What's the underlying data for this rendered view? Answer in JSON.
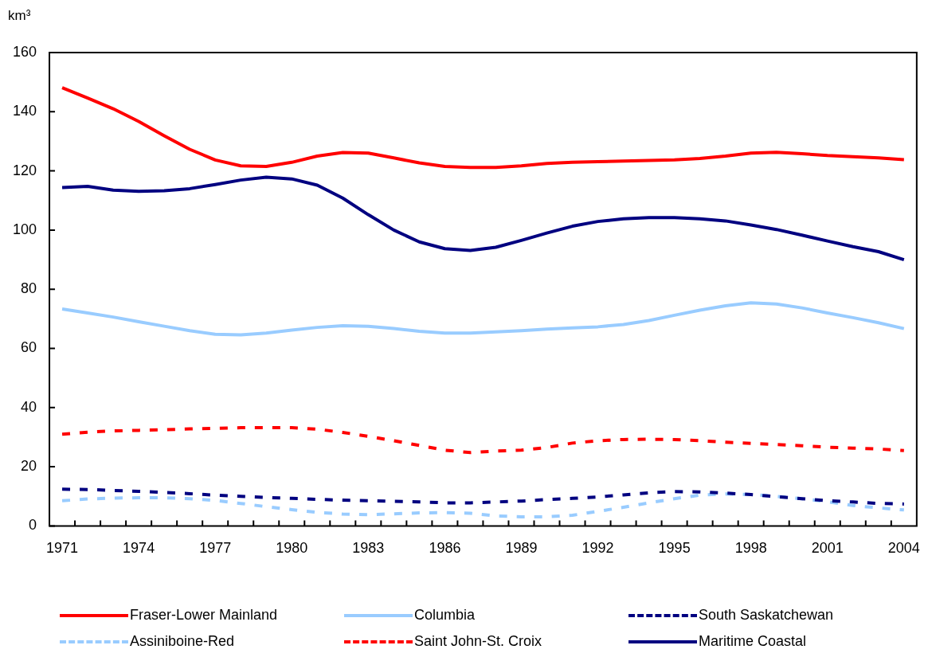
{
  "chart_data": {
    "type": "line",
    "ylabel": "km³",
    "categories": [
      "1971",
      null,
      null,
      "1974",
      null,
      null,
      "1977",
      null,
      null,
      "1980",
      null,
      null,
      "1983",
      null,
      null,
      "1986",
      null,
      null,
      "1989",
      null,
      null,
      "1992",
      null,
      null,
      "1995",
      null,
      null,
      "1998",
      null,
      null,
      "2001",
      null,
      null,
      "2004"
    ],
    "ylim": [
      0,
      160
    ],
    "yticks": [
      0,
      20,
      40,
      60,
      80,
      100,
      120,
      140,
      160
    ],
    "grid": false,
    "legend": "bottom",
    "marker": "none",
    "series": [
      {
        "name": "Fraser-Lower Mainland",
        "color": "#ff0000",
        "line_style": "solid",
        "values": [
          148.1,
          144.6,
          141,
          136.7,
          131.9,
          127.3,
          123.7,
          121.7,
          121.5,
          122.9,
          125,
          126.2,
          126,
          124.4,
          122.7,
          121.5,
          121.2,
          121.2,
          121.7,
          122.5,
          122.9,
          123.1,
          123.3,
          123.5,
          123.7,
          124.2,
          125,
          126,
          126.3,
          125.8,
          125.2,
          124.8,
          124.4,
          123.8
        ]
      },
      {
        "name": "Columbia",
        "color": "#99ccff",
        "line_style": "solid",
        "values": [
          73.3,
          72,
          70.6,
          69,
          67.5,
          66,
          64.8,
          64.6,
          65.2,
          66.2,
          67.1,
          67.7,
          67.5,
          66.7,
          65.8,
          65.2,
          65.2,
          65.6,
          66,
          66.5,
          66.9,
          67.3,
          68.1,
          69.4,
          71.2,
          72.9,
          74.4,
          75.4,
          75,
          73.7,
          72,
          70.4,
          68.7,
          66.7
        ]
      },
      {
        "name": "South Saskatchewan",
        "color": "#000080",
        "line_style": "dashed",
        "values": [
          12.4,
          12.3,
          12,
          11.7,
          11.3,
          10.9,
          10.4,
          10,
          9.6,
          9.3,
          9,
          8.7,
          8.5,
          8.3,
          8.1,
          7.8,
          7.8,
          8.1,
          8.4,
          8.9,
          9.3,
          9.8,
          10.5,
          11.2,
          11.6,
          11.5,
          11.1,
          10.6,
          9.9,
          9.2,
          8.5,
          8.1,
          7.6,
          7.4
        ]
      },
      {
        "name": "Assiniboine-Red",
        "color": "#99ccff",
        "line_style": "dashed",
        "values": [
          8.5,
          9.1,
          9.4,
          9.5,
          9.5,
          9.2,
          8.6,
          7.6,
          6.5,
          5.5,
          4.6,
          4,
          3.8,
          4.1,
          4.4,
          4.5,
          4.3,
          3.4,
          3.1,
          3.1,
          3.6,
          4.9,
          6.3,
          7.8,
          9.2,
          10.4,
          10.8,
          10.6,
          10,
          9.2,
          8.2,
          6.9,
          6.1,
          5.4
        ]
      },
      {
        "name": "Saint John-St. Croix",
        "color": "#ff0000",
        "line_style": "dashed",
        "values": [
          31,
          31.7,
          32.1,
          32.3,
          32.5,
          32.8,
          33,
          33.2,
          33.2,
          33.2,
          32.7,
          31.6,
          30.3,
          28.8,
          27.2,
          25.6,
          24.8,
          25.3,
          25.6,
          26.5,
          28,
          28.8,
          29.2,
          29.3,
          29.2,
          28.8,
          28.3,
          27.9,
          27.5,
          27.1,
          26.6,
          26.3,
          26,
          25.5
        ]
      },
      {
        "name": "Maritime Coastal",
        "color": "#000080",
        "line_style": "solid",
        "values": [
          114.4,
          114.8,
          113.5,
          113.1,
          113.3,
          114,
          115.4,
          116.9,
          117.9,
          117.3,
          115.2,
          110.8,
          105.2,
          100,
          96,
          93.7,
          93.1,
          94.2,
          96.5,
          99,
          101.3,
          102.9,
          103.8,
          104.2,
          104.2,
          103.8,
          103.1,
          101.7,
          100.2,
          98.3,
          96.3,
          94.4,
          92.7,
          90
        ]
      }
    ]
  }
}
